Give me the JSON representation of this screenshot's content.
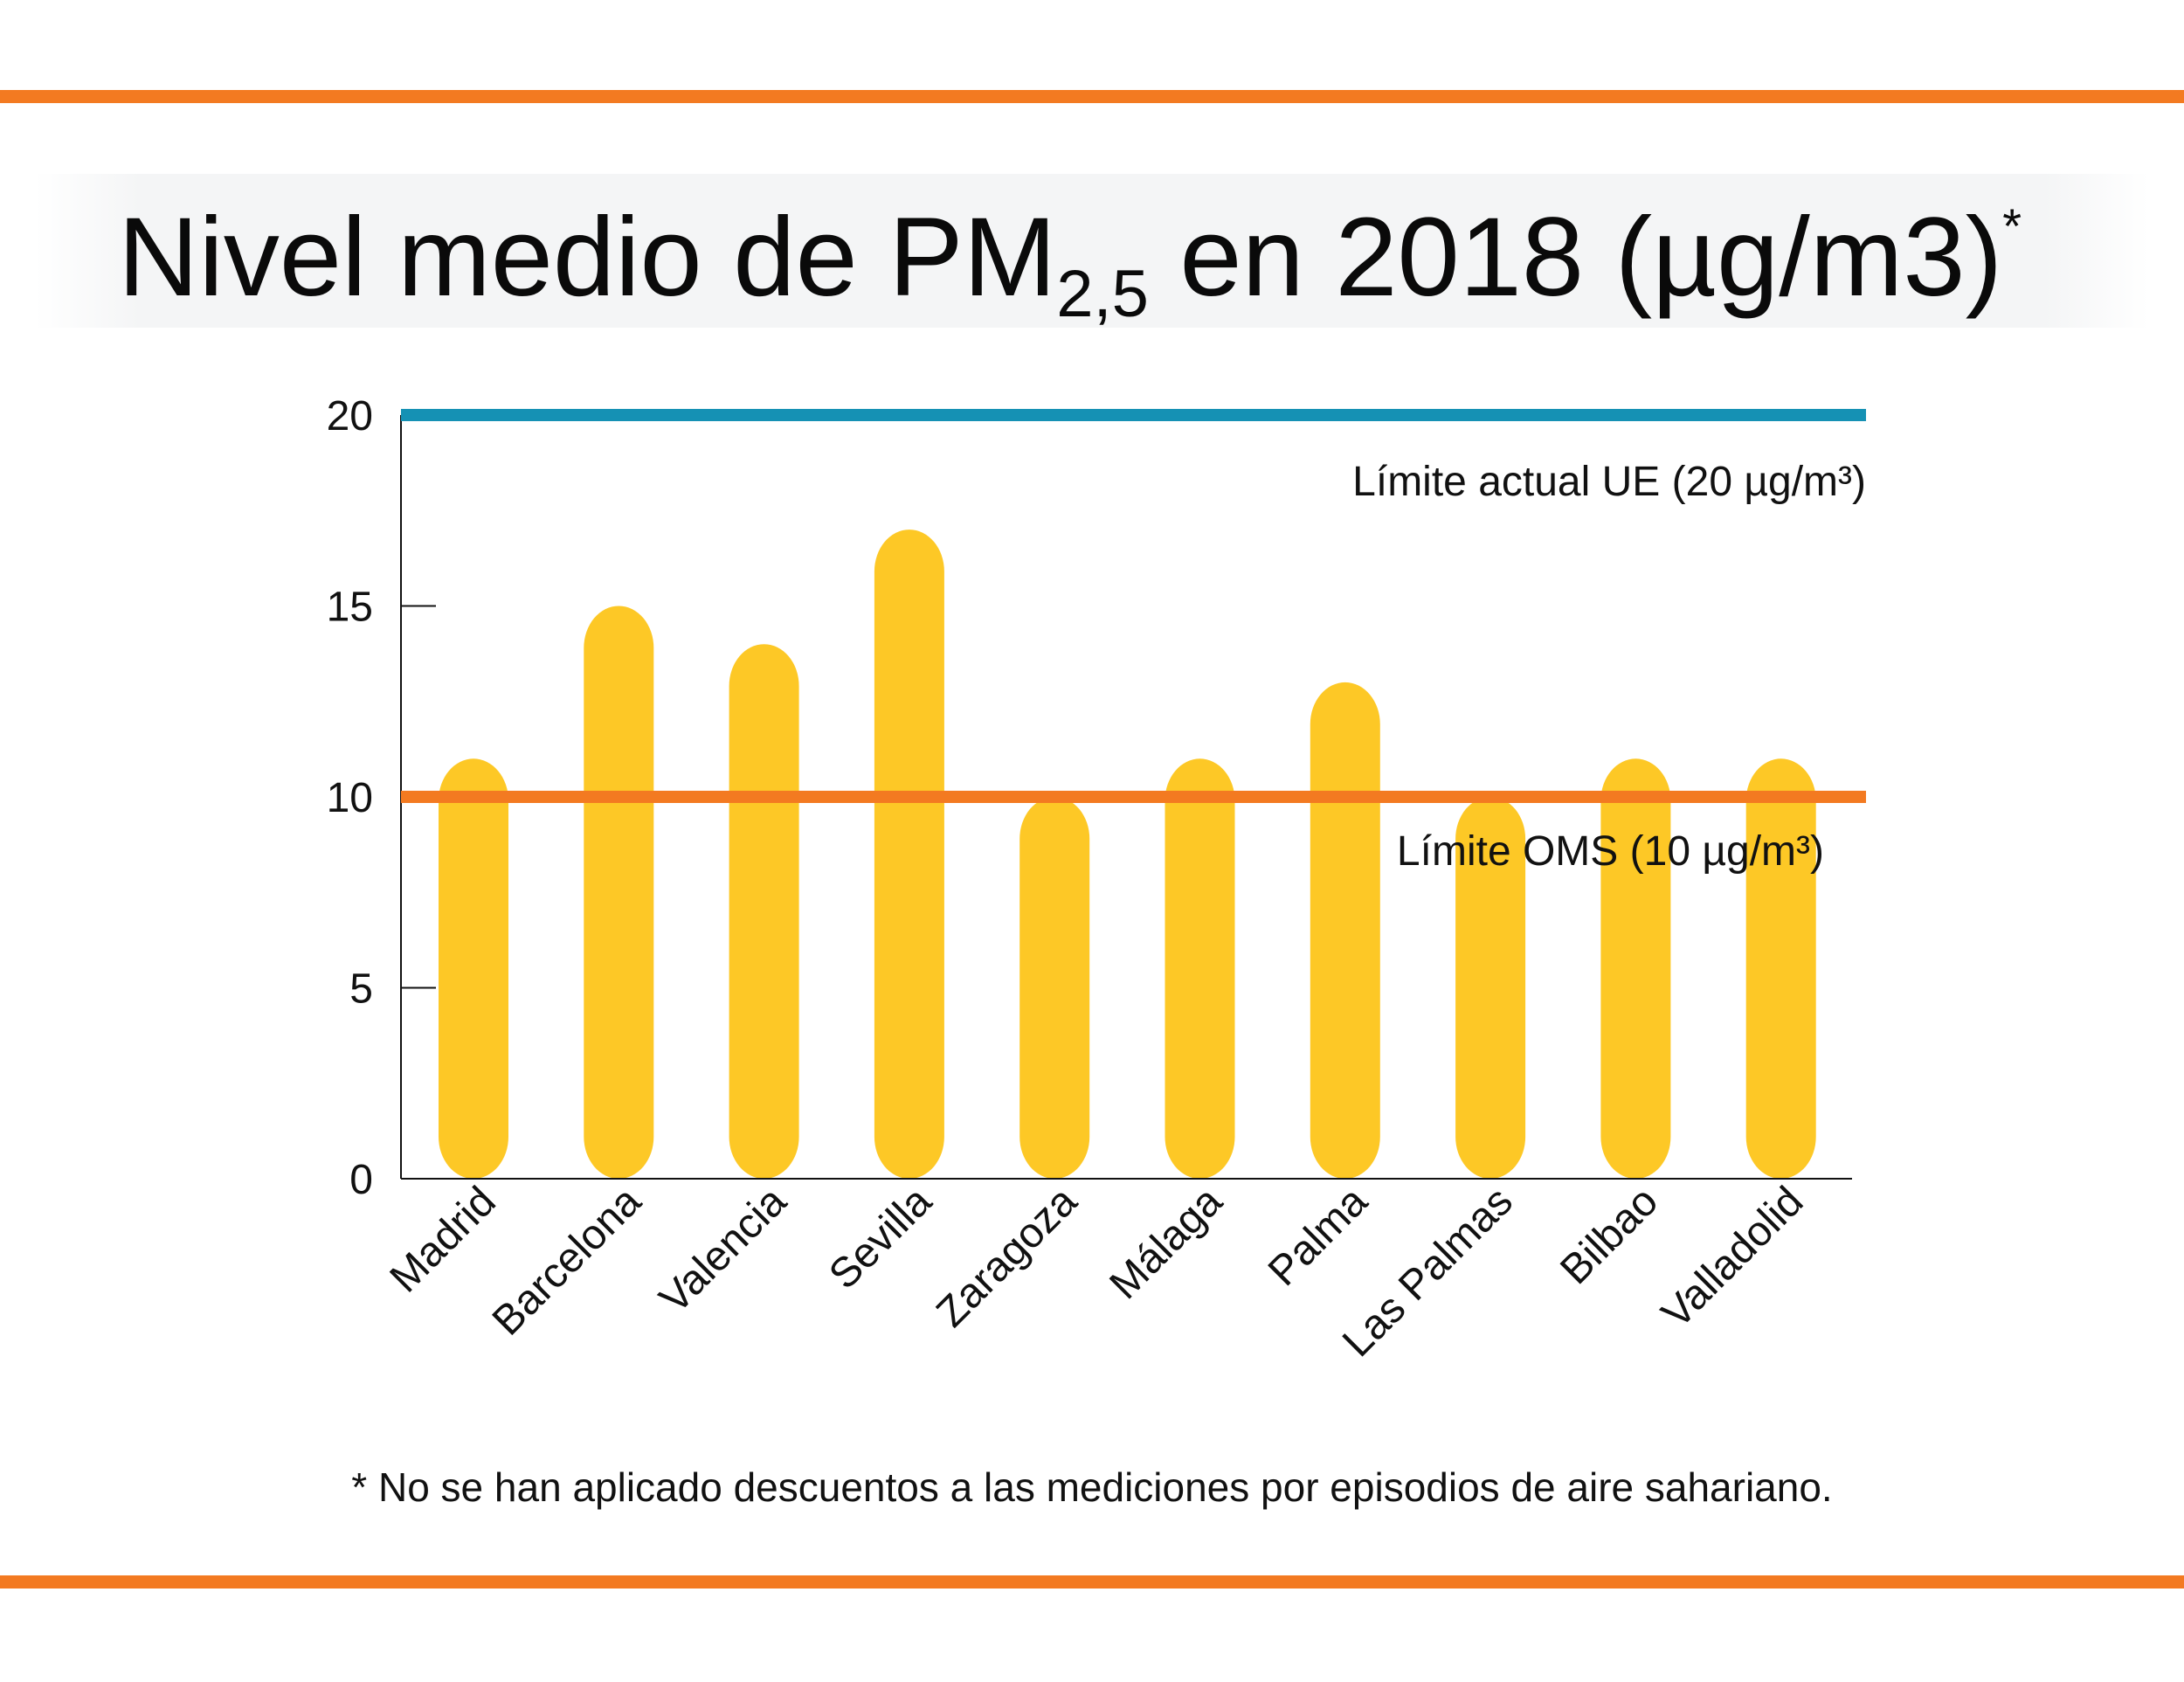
{
  "chart_data": {
    "type": "bar",
    "title": "Nivel medio de PM",
    "title_subscript": "2,5",
    "title_suffix": " en 2018 (µg/m3)",
    "title_mark": "*",
    "categories": [
      "Madrid",
      "Barcelona",
      "Valencia",
      "Sevilla",
      "Zaragoza",
      "Málaga",
      "Palma",
      "Las Palmas",
      "Bilbao",
      "Valladolid"
    ],
    "values": [
      11,
      15,
      14,
      17,
      10,
      11,
      13,
      10,
      11,
      11
    ],
    "ylim": [
      0,
      20
    ],
    "yticks": [
      0,
      5,
      10,
      15,
      20
    ],
    "xlabel": "",
    "ylabel": "",
    "grid": false,
    "reference_lines": [
      {
        "value": 20,
        "label": "Límite actual UE (20 µg/m³)",
        "color": "#1591b4"
      },
      {
        "value": 10,
        "label": "Límite OMS (10 µg/m³)",
        "color": "#f37a21"
      }
    ],
    "bar_color": "#fdc826",
    "footnote": "* No se han aplicado descuentos a las mediciones por episodios de aire sahariano."
  },
  "colors": {
    "accent": "#f37a21",
    "title_band": "#f4f5f6"
  }
}
